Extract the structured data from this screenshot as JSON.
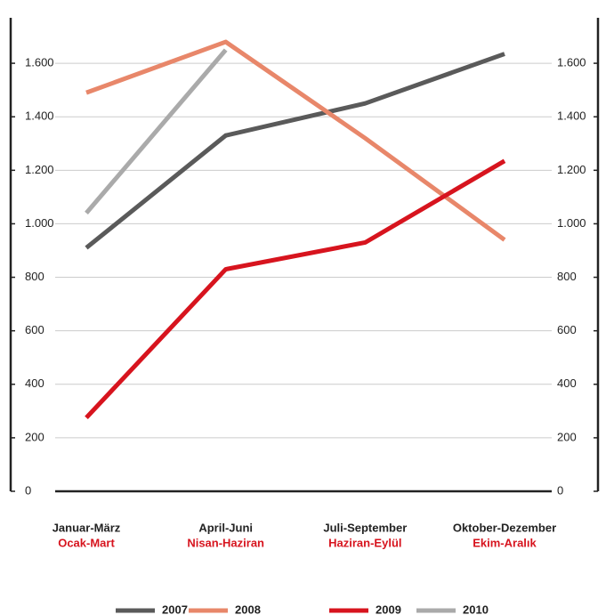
{
  "chart_data": {
    "type": "line",
    "categories": [
      "Januar-März",
      "April-Juni",
      "Juli-September",
      "Oktober-Dezember"
    ],
    "categories_secondary": [
      "Ocak-Mart",
      "Nisan-Haziran",
      "Haziran-Eylül",
      "Ekim-Aralık"
    ],
    "series": [
      {
        "name": "2007",
        "color": "#5a5a5a",
        "values": [
          910,
          1330,
          1450,
          1635
        ]
      },
      {
        "name": "2008",
        "color": "#e8876a",
        "values": [
          1490,
          1680,
          1320,
          940
        ]
      },
      {
        "name": "2009",
        "color": "#d7141e",
        "values": [
          275,
          830,
          930,
          1235
        ]
      },
      {
        "name": "2010",
        "color": "#aaaaaa",
        "values": [
          1040,
          1650,
          null,
          null
        ]
      }
    ],
    "ylim": [
      0,
      1770
    ],
    "yticks": [
      0,
      200,
      400,
      600,
      800,
      {
        "value": 1000,
        "label": "1.000"
      },
      {
        "value": 1200,
        "label": "1.200"
      },
      {
        "value": 1400,
        "label": "1.400"
      },
      {
        "value": 1600,
        "label": "1.600"
      }
    ],
    "y2lim": [
      0,
      1770
    ],
    "y2ticks": [
      0,
      200,
      400,
      600,
      800,
      {
        "value": 1000,
        "label": "1.000"
      },
      {
        "value": 1200,
        "label": "1.200"
      },
      {
        "value": 1400,
        "label": "1.400"
      },
      {
        "value": 1600,
        "label": "1.600"
      }
    ],
    "grid": true
  }
}
